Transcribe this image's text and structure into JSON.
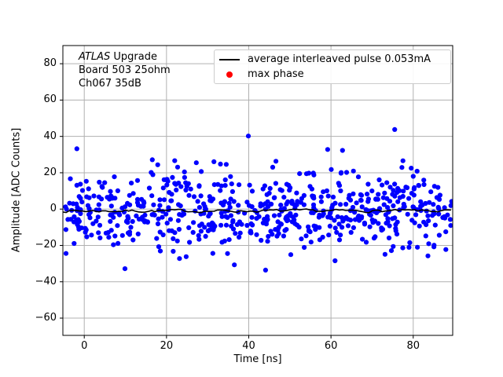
{
  "figure": {
    "background": "#ffffff"
  },
  "chart_data": {
    "type": "scatter",
    "title": "",
    "xlabel": "Time [ns]",
    "ylabel": "Amplitude [ADC Counts]",
    "xlim": [
      -5.2,
      89.6
    ],
    "ylim": [
      -69.5,
      90.0
    ],
    "xticks": [
      0,
      20,
      40,
      60,
      80
    ],
    "yticks": [
      -60,
      -40,
      -20,
      0,
      20,
      40,
      60,
      80
    ],
    "grid": true,
    "legend_position": "upper right",
    "colors": {
      "scatter": "#0000ff",
      "average_line": "#000000",
      "max_phase": "#ff0000",
      "grid": "#b0b0b0",
      "spine": "#000000",
      "legend_border": "#cccccc",
      "text": "#000000"
    },
    "annotation": {
      "title_italic": "ATLAS",
      "title_rest": " Upgrade",
      "line2": "Board 503 25ohm",
      "line3": "Ch067 35dB"
    },
    "legend": {
      "entries": [
        {
          "label": "average interleaved pulse 0.053mA",
          "marker": "line",
          "color": "#000000"
        },
        {
          "label": "max phase",
          "marker": "dot",
          "color": "#ff0000"
        }
      ]
    },
    "scatter_series": {
      "name": "interleaved pulse samples",
      "marker_radius": 3.1,
      "noise": {
        "seed": 20467,
        "n": 640,
        "x_min": -4.6,
        "x_max": 89.5,
        "y_mean": -0.5,
        "y_sigma": 10.5,
        "y_clip": 29
      },
      "outliers": [
        [
          -1.8,
          33.2
        ],
        [
          39.9,
          40.2
        ],
        [
          75.5,
          43.8
        ],
        [
          59.2,
          32.8
        ],
        [
          62.8,
          32.3
        ],
        [
          9.9,
          -32.8
        ],
        [
          36.5,
          -30.7
        ],
        [
          44.1,
          -33.6
        ]
      ]
    },
    "average_line": {
      "description": "average interleaved pulse, nearly flat around 0 ADC counts",
      "baseline": -1.0,
      "wiggle": 1.3,
      "seed": 7,
      "x_step": 0.8,
      "width": 1.6
    }
  }
}
